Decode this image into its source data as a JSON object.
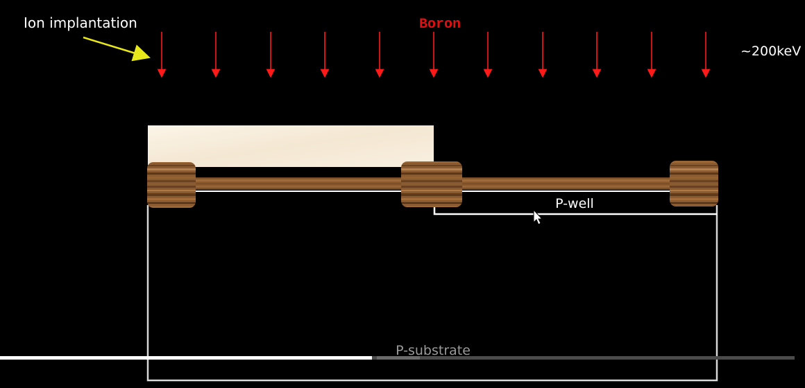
{
  "annotation": {
    "label": "Ion implantation",
    "arrow_color": "#e8e81a"
  },
  "dopant": {
    "label": "Boron",
    "energy": "~200keV",
    "ion_arrow_color": "#ff1a1a"
  },
  "regions": {
    "well": "P-well",
    "substrate": "P-substrate"
  },
  "materials": {
    "photoresist_color": "#f6ead6",
    "oxide_color": "#8a5a30",
    "field_oxide_color": "#7a4d26"
  },
  "video": {
    "progress": 0.468
  },
  "icons": {
    "cursor": "mouse-pointer-icon"
  }
}
